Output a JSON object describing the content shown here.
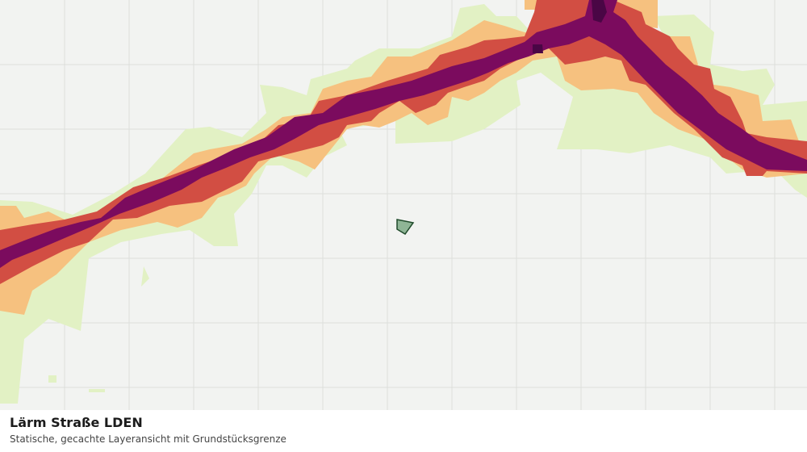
{
  "caption": {
    "title": "Lärm Straße LDEN",
    "subtitle": "Statische, gecachte Layeransicht mit Grundstücksgrenze"
  },
  "map": {
    "background_color": "#f2f3f1",
    "grid_color": "#dddfdc",
    "noise_classes": [
      {
        "level": 1,
        "color": "#e2f1c4"
      },
      {
        "level": 2,
        "color": "#f6c17f"
      },
      {
        "level": 3,
        "color": "#d24e43"
      },
      {
        "level": 4,
        "color": "#7b0b5e"
      },
      {
        "level": 5,
        "color": "#4a0645"
      }
    ],
    "parcel": {
      "fill": "#8fb596",
      "stroke": "#1f4a2a"
    }
  }
}
